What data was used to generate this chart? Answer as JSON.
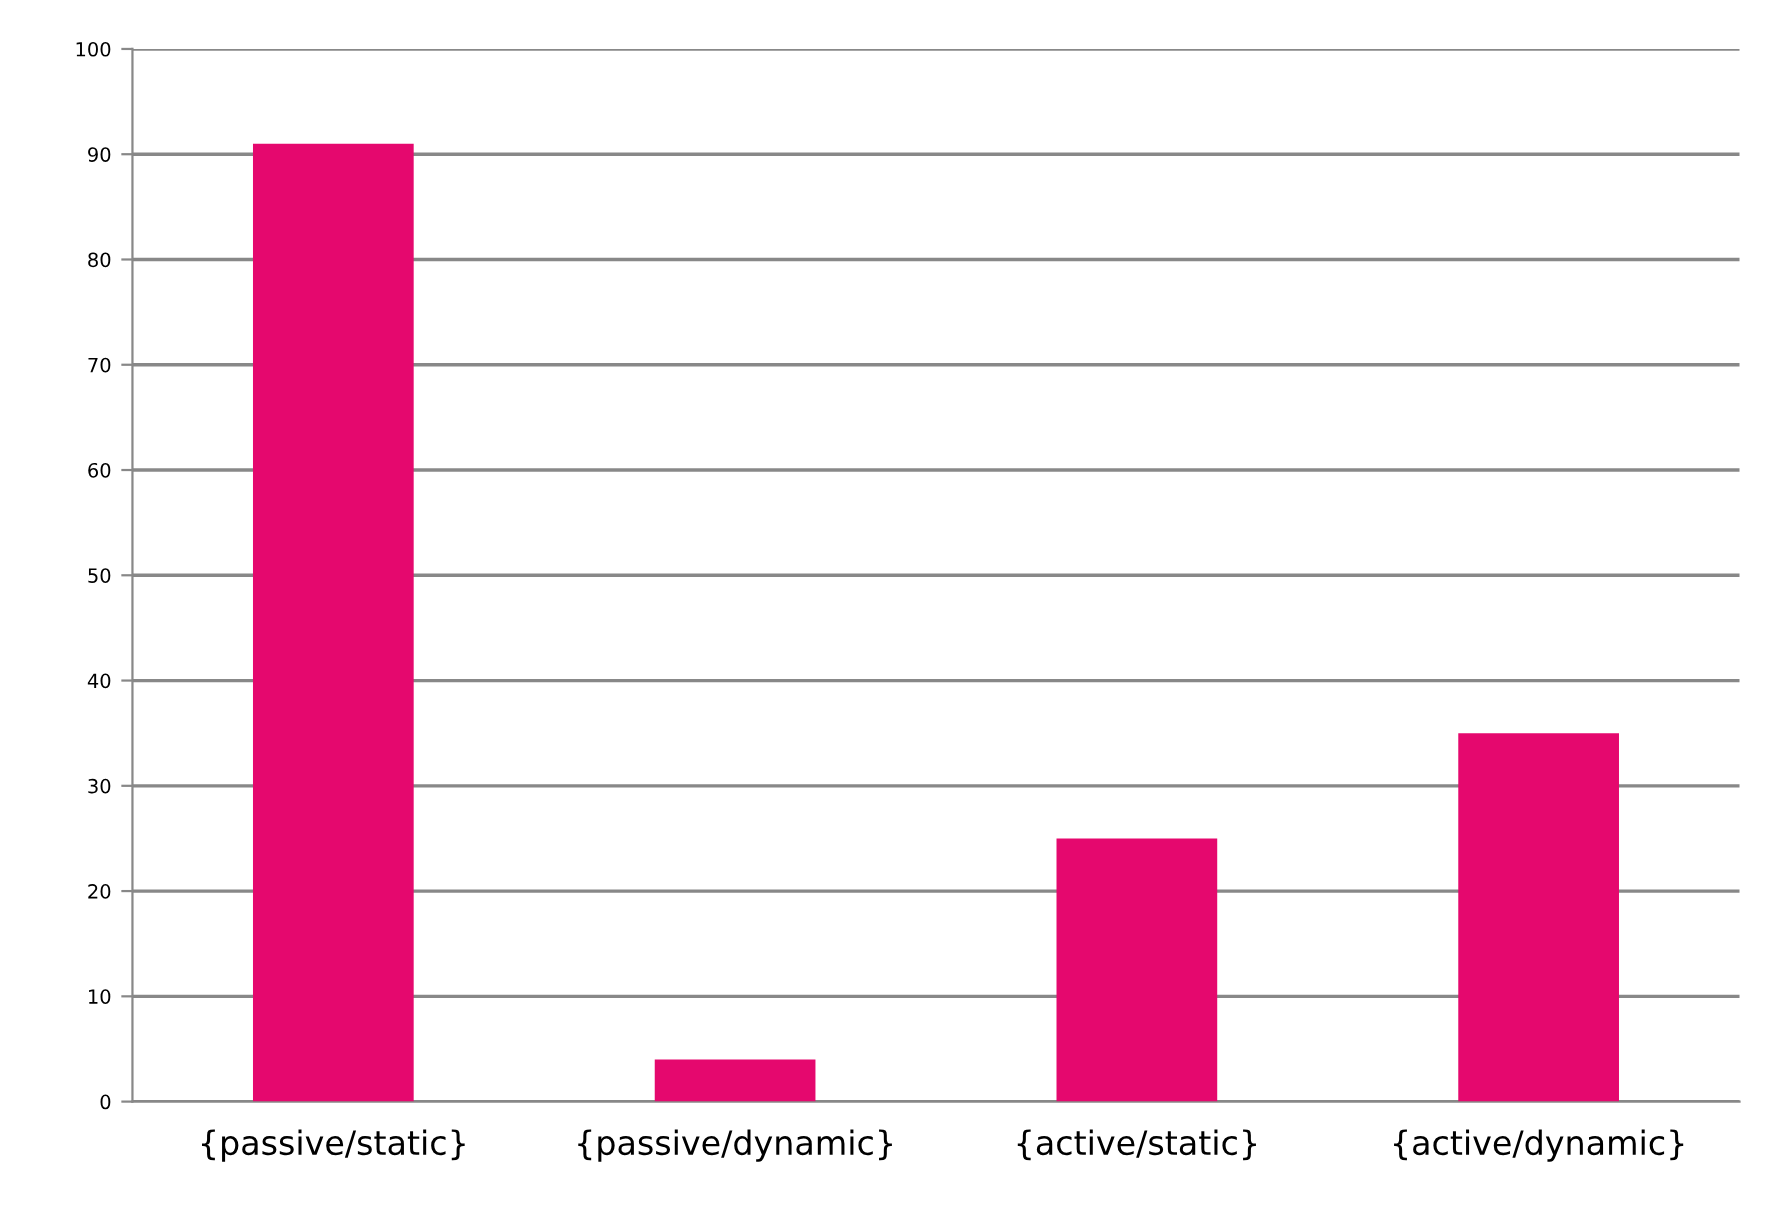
{
  "chart_data": {
    "type": "bar",
    "categories": [
      "{passive/static}",
      "{passive/dynamic}",
      "{active/static}",
      "{active/dynamic}"
    ],
    "values": [
      91,
      4,
      25,
      35
    ],
    "color": "#e5086e",
    "ylim": [
      0,
      100
    ],
    "yticks": [
      0,
      10,
      20,
      30,
      40,
      50,
      60,
      70,
      80,
      90,
      100
    ],
    "grid": "y",
    "legend": false
  }
}
